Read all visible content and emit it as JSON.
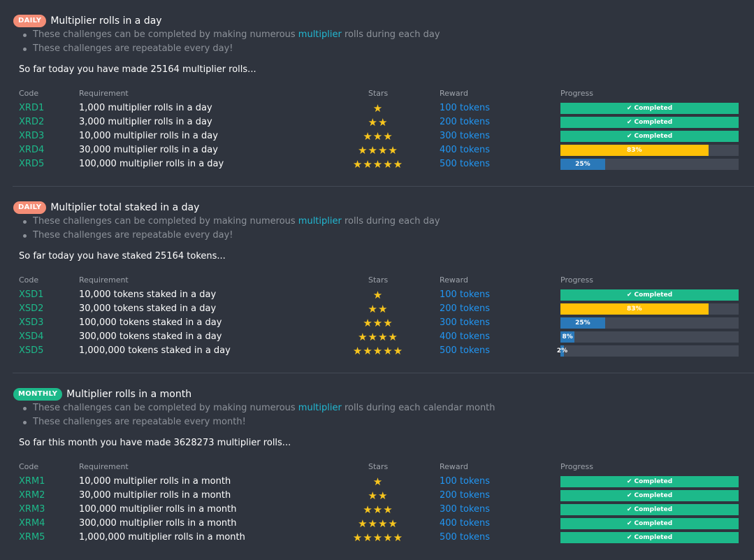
{
  "headers": {
    "code": "Code",
    "requirement": "Requirement",
    "stars": "Stars",
    "reward": "Reward",
    "progress": "Progress"
  },
  "sections": [
    {
      "badge": "DAILY",
      "badge_color": "#f48d76",
      "title": "Multiplier rolls in a day",
      "note1_pre": "These challenges can be completed by making numerous ",
      "note1_link": "multiplier",
      "note1_post": " rolls during each day",
      "note2": "These challenges are repeatable every day!",
      "sofar": "So far today you have made 25164 multiplier rolls...",
      "rows": [
        {
          "code": "XRD1",
          "requirement": "1,000 multiplier rolls in a day",
          "stars": "★",
          "reward": "100 tokens",
          "progress": 1.0,
          "label": "✔ Completed",
          "state": "completed"
        },
        {
          "code": "XRD2",
          "requirement": "3,000 multiplier rolls in a day",
          "stars": "★★",
          "reward": "200 tokens",
          "progress": 1.0,
          "label": "✔ Completed",
          "state": "completed"
        },
        {
          "code": "XRD3",
          "requirement": "10,000 multiplier rolls in a day",
          "stars": "★★★",
          "reward": "300 tokens",
          "progress": 1.0,
          "label": "✔ Completed",
          "state": "completed"
        },
        {
          "code": "XRD4",
          "requirement": "30,000 multiplier rolls in a day",
          "stars": "★★★★",
          "reward": "400 tokens",
          "progress": 0.83,
          "label": "83%",
          "state": "high"
        },
        {
          "code": "XRD5",
          "requirement": "100,000 multiplier rolls in a day",
          "stars": "★★★★★",
          "reward": "500 tokens",
          "progress": 0.25,
          "label": "25%",
          "state": "low"
        }
      ]
    },
    {
      "badge": "DAILY",
      "badge_color": "#f48d76",
      "title": "Multiplier total staked in a day",
      "note1_pre": "These challenges can be completed by making numerous ",
      "note1_link": "multiplier",
      "note1_post": " rolls during each day",
      "note2": "These challenges are repeatable every day!",
      "sofar": "So far today you have staked 25164 tokens...",
      "rows": [
        {
          "code": "XSD1",
          "requirement": "10,000 tokens staked in a day",
          "stars": "★",
          "reward": "100 tokens",
          "progress": 1.0,
          "label": "✔ Completed",
          "state": "completed"
        },
        {
          "code": "XSD2",
          "requirement": "30,000 tokens staked in a day",
          "stars": "★★",
          "reward": "200 tokens",
          "progress": 0.83,
          "label": "83%",
          "state": "high"
        },
        {
          "code": "XSD3",
          "requirement": "100,000 tokens staked in a day",
          "stars": "★★★",
          "reward": "300 tokens",
          "progress": 0.25,
          "label": "25%",
          "state": "low"
        },
        {
          "code": "XSD4",
          "requirement": "300,000 tokens staked in a day",
          "stars": "★★★★",
          "reward": "400 tokens",
          "progress": 0.08,
          "label": "8%",
          "state": "low"
        },
        {
          "code": "XSD5",
          "requirement": "1,000,000 tokens staked in a day",
          "stars": "★★★★★",
          "reward": "500 tokens",
          "progress": 0.02,
          "label": "2%",
          "state": "low"
        }
      ]
    },
    {
      "badge": "MONTHLY",
      "badge_color": "#1db98a",
      "title": "Multiplier rolls in a month",
      "note1_pre": "These challenges can be completed by making numerous ",
      "note1_link": "multiplier",
      "note1_post": " rolls during each calendar month",
      "note2": "These challenges are repeatable every month!",
      "sofar": "So far this month you have made 3628273 multiplier rolls...",
      "rows": [
        {
          "code": "XRM1",
          "requirement": "10,000 multiplier rolls in a month",
          "stars": "★",
          "reward": "100 tokens",
          "progress": 1.0,
          "label": "✔ Completed",
          "state": "completed"
        },
        {
          "code": "XRM2",
          "requirement": "30,000 multiplier rolls in a month",
          "stars": "★★",
          "reward": "200 tokens",
          "progress": 1.0,
          "label": "✔ Completed",
          "state": "completed"
        },
        {
          "code": "XRM3",
          "requirement": "100,000 multiplier rolls in a month",
          "stars": "★★★",
          "reward": "300 tokens",
          "progress": 1.0,
          "label": "✔ Completed",
          "state": "completed"
        },
        {
          "code": "XRM4",
          "requirement": "300,000 multiplier rolls in a month",
          "stars": "★★★★",
          "reward": "400 tokens",
          "progress": 1.0,
          "label": "✔ Completed",
          "state": "completed"
        },
        {
          "code": "XRM5",
          "requirement": "1,000,000 multiplier rolls in a month",
          "stars": "★★★★★",
          "reward": "500 tokens",
          "progress": 1.0,
          "label": "✔ Completed",
          "state": "completed"
        }
      ]
    }
  ]
}
